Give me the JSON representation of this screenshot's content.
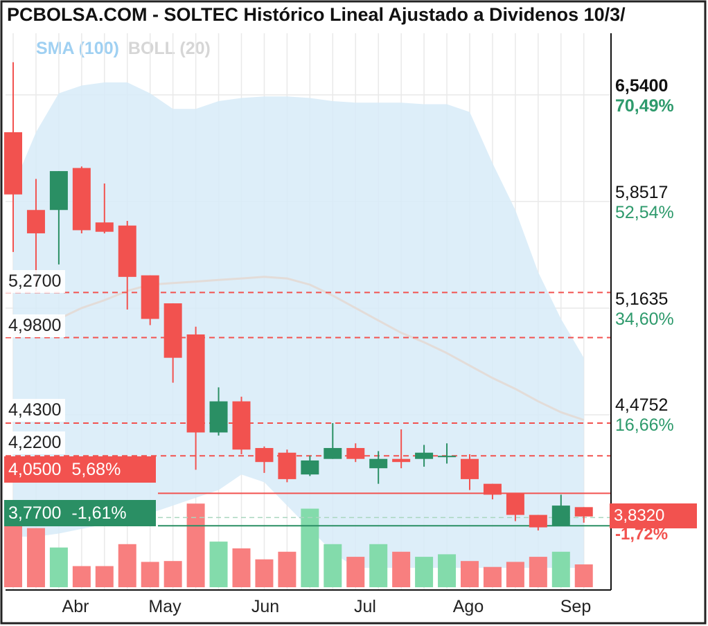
{
  "title": "PCBOLSA.COM - SOLTEC Histórico Lineal Ajustado a Dividenos 10/3/",
  "legend": {
    "sma": "SMA (100)",
    "boll": "BOLL (20)"
  },
  "colors": {
    "up": "#2a8f64",
    "down": "#f2524f",
    "volume_up": "#83dbab",
    "volume_down": "#f87f7f",
    "bollinger_band": "#d7ebf8",
    "sma": "#e3dcd8",
    "grid": "#e9e9e9"
  },
  "right_axis": [
    {
      "price": "6,5400",
      "pct": "70,49%",
      "emphasis": true
    },
    {
      "price": "5,8517",
      "pct": "52,54%"
    },
    {
      "price": "5,1635",
      "pct": "34,60%"
    },
    {
      "price": "4,4752",
      "pct": "16,66%"
    }
  ],
  "level_labels": [
    "5,2700",
    "4,9800",
    "4,4300",
    "4,2200"
  ],
  "reference_tags": {
    "resistance": {
      "price": "4,0500",
      "pct": "5,68%"
    },
    "support": {
      "price": "3,7700",
      "pct": "-1,61%"
    }
  },
  "current": {
    "price": "3,8320",
    "pct": "-1,72%"
  },
  "chart_data": {
    "type": "candlestick",
    "title": "PCBOLSA.COM - SOLTEC Histórico Lineal Ajustado a Dividenos 10/3/",
    "x_ticks": [
      "Abr",
      "May",
      "Jun",
      "Jul",
      "Ago",
      "Sep"
    ],
    "ylim": [
      3.5,
      6.75
    ],
    "horizontal_levels": [
      5.27,
      4.98,
      4.43,
      4.22,
      4.05,
      3.77
    ],
    "candles": [
      {
        "o": 6.3,
        "h": 6.75,
        "l": 5.53,
        "c": 5.9
      },
      {
        "o": 5.8,
        "h": 6.0,
        "l": 5.28,
        "c": 5.65
      },
      {
        "o": 5.8,
        "h": 6.05,
        "l": 5.45,
        "c": 6.05
      },
      {
        "o": 6.07,
        "h": 6.08,
        "l": 5.65,
        "c": 5.67
      },
      {
        "o": 5.72,
        "h": 5.97,
        "l": 5.65,
        "c": 5.66
      },
      {
        "o": 5.7,
        "h": 5.73,
        "l": 5.16,
        "c": 5.37
      },
      {
        "o": 5.38,
        "h": 5.38,
        "l": 5.06,
        "c": 5.1
      },
      {
        "o": 5.2,
        "h": 5.2,
        "l": 4.69,
        "c": 4.85
      },
      {
        "o": 5.0,
        "h": 5.05,
        "l": 4.13,
        "c": 4.37
      },
      {
        "o": 4.37,
        "h": 4.66,
        "l": 4.35,
        "c": 4.57
      },
      {
        "o": 4.57,
        "h": 4.6,
        "l": 4.23,
        "c": 4.26
      },
      {
        "o": 4.27,
        "h": 4.28,
        "l": 4.11,
        "c": 4.18
      },
      {
        "o": 4.24,
        "h": 4.26,
        "l": 4.05,
        "c": 4.07
      },
      {
        "o": 4.1,
        "h": 4.22,
        "l": 4.09,
        "c": 4.19
      },
      {
        "o": 4.2,
        "h": 4.43,
        "l": 4.2,
        "c": 4.27
      },
      {
        "o": 4.27,
        "h": 4.3,
        "l": 4.18,
        "c": 4.2
      },
      {
        "o": 4.14,
        "h": 4.25,
        "l": 4.04,
        "c": 4.2
      },
      {
        "o": 4.2,
        "h": 4.39,
        "l": 4.14,
        "c": 4.18
      },
      {
        "o": 4.2,
        "h": 4.29,
        "l": 4.15,
        "c": 4.24
      },
      {
        "o": 4.22,
        "h": 4.3,
        "l": 4.17,
        "c": 4.22
      },
      {
        "o": 4.2,
        "h": 4.23,
        "l": 4.0,
        "c": 4.07
      },
      {
        "o": 4.04,
        "h": 4.04,
        "l": 3.94,
        "c": 3.97
      },
      {
        "o": 3.98,
        "h": 3.98,
        "l": 3.8,
        "c": 3.84
      },
      {
        "o": 3.84,
        "h": 3.84,
        "l": 3.74,
        "c": 3.76
      },
      {
        "o": 3.77,
        "h": 3.97,
        "l": 3.77,
        "c": 3.9
      },
      {
        "o": 3.89,
        "h": 3.89,
        "l": 3.79,
        "c": 3.83
      }
    ],
    "volume_relative": [
      0.92,
      0.7,
      0.47,
      0.25,
      0.25,
      0.51,
      0.3,
      0.31,
      0.99,
      0.54,
      0.46,
      0.33,
      0.42,
      0.93,
      0.51,
      0.36,
      0.51,
      0.42,
      0.36,
      0.39,
      0.31,
      0.24,
      0.3,
      0.36,
      0.42,
      0.27
    ],
    "bollinger_upper": [
      5.95,
      6.3,
      6.55,
      6.6,
      6.62,
      6.62,
      6.55,
      6.45,
      6.45,
      6.5,
      6.52,
      6.53,
      6.53,
      6.52,
      6.5,
      6.49,
      6.49,
      6.49,
      6.48,
      6.48,
      6.43,
      6.1,
      5.8,
      5.4,
      5.1,
      4.85
    ],
    "bollinger_lower": [
      3.7,
      3.7,
      3.72,
      3.75,
      3.78,
      3.8,
      3.85,
      3.9,
      3.95,
      4.0,
      4.1,
      4.05,
      3.9,
      3.75,
      3.6,
      3.5,
      3.5,
      3.5,
      3.5,
      3.5,
      3.5,
      3.5,
      3.5,
      3.5,
      3.5,
      3.5
    ],
    "sma": [
      5.0,
      5.05,
      5.1,
      5.17,
      5.22,
      5.28,
      5.32,
      5.33,
      5.34,
      5.35,
      5.36,
      5.37,
      5.36,
      5.32,
      5.25,
      5.17,
      5.09,
      5.01,
      4.95,
      4.88,
      4.8,
      4.72,
      4.65,
      4.57,
      4.5,
      4.45
    ]
  }
}
